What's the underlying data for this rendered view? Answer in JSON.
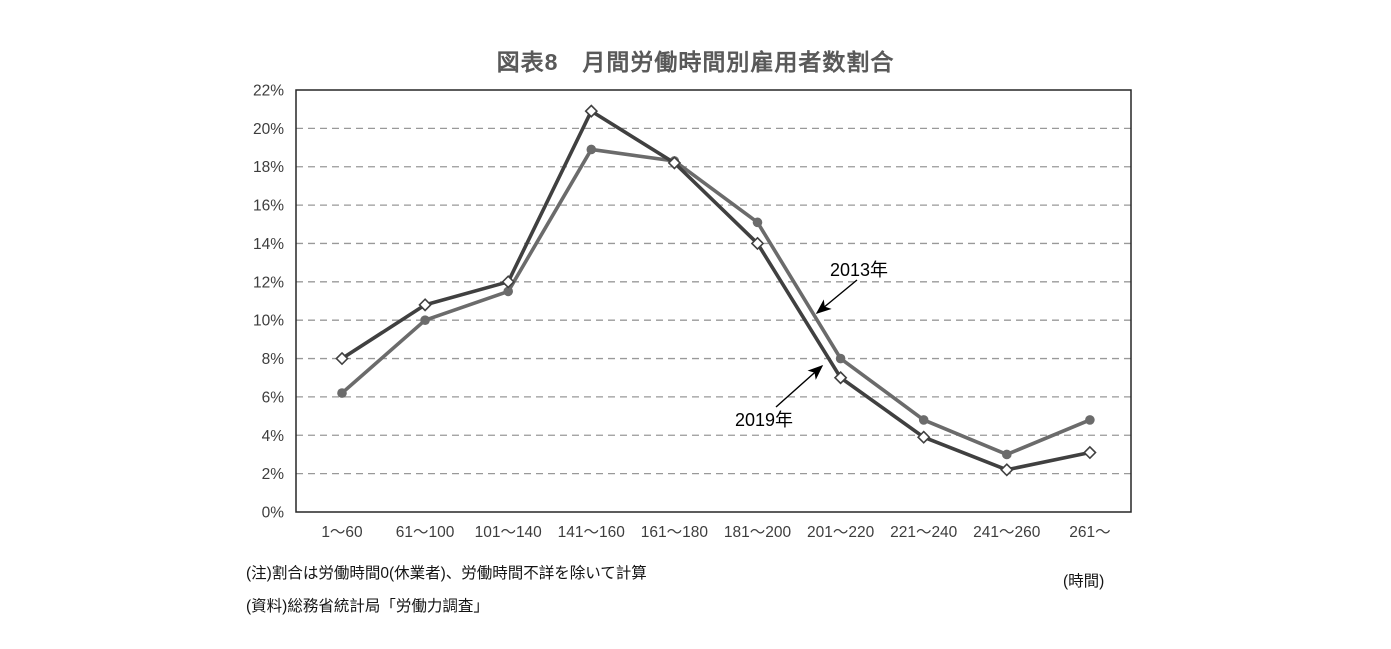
{
  "chart_data": {
    "type": "line",
    "title": "図表8　月間労働時間別雇用者数割合",
    "categories": [
      "1～60",
      "61～100",
      "101～140",
      "141～160",
      "161～180",
      "181～200",
      "201～220",
      "221～240",
      "241～260",
      "261～"
    ],
    "x_unit_label": "(時間)",
    "xlabel": "",
    "ylabel": "",
    "y_ticks": [
      "0%",
      "2%",
      "4%",
      "6%",
      "8%",
      "10%",
      "12%",
      "14%",
      "16%",
      "18%",
      "20%",
      "22%"
    ],
    "ylim": [
      0,
      22
    ],
    "y_tick_step": 2,
    "grid": "horizontal-dashed",
    "legend_position": "inline-annotations",
    "series": [
      {
        "name": "2013年",
        "marker": "filled-circle",
        "color": "#6b6b6b",
        "values": [
          6.2,
          10.0,
          11.5,
          18.9,
          18.3,
          15.1,
          8.0,
          4.8,
          3.0,
          4.8
        ]
      },
      {
        "name": "2019年",
        "marker": "open-diamond",
        "color": "#404040",
        "values": [
          8.0,
          10.8,
          12.0,
          20.9,
          18.2,
          14.0,
          7.0,
          3.9,
          2.2,
          3.1
        ]
      }
    ],
    "annotations": [
      {
        "text": "2013年",
        "points_to": "2013年 series line"
      },
      {
        "text": "2019年",
        "points_to": "2019年 series line"
      }
    ]
  },
  "notes": {
    "line1": "(注)割合は労働時間0(休業者)、労働時間不詳を除いて計算",
    "line2": "(資料)総務省統計局「労働力調査」"
  },
  "colors": {
    "title_text": "#595959",
    "axis_box": "#262626",
    "gridline": "#999999",
    "tick_text": "#3d3d3d",
    "annotation_arrow": "#000000"
  }
}
